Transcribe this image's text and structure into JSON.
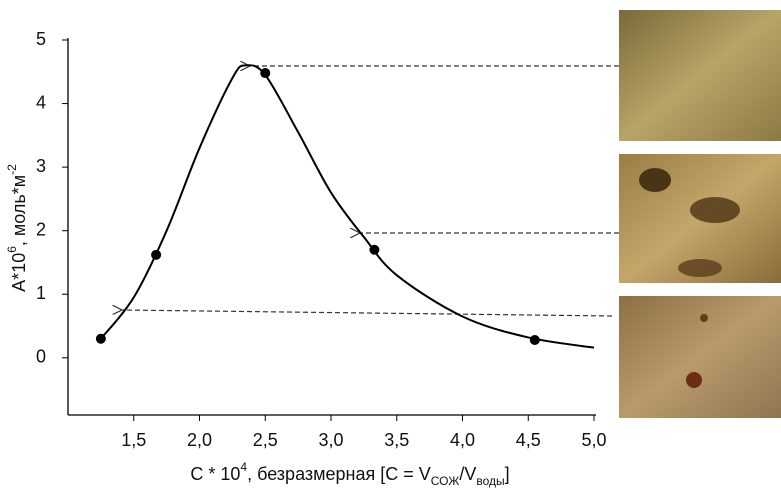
{
  "chart_data": {
    "type": "scatter",
    "x_label_parts": [
      "C * 10",
      "4",
      ", безразмерная  [C = V",
      "СОЖ",
      "/V",
      "воды",
      "]"
    ],
    "y_label_parts": [
      "A*10",
      "6",
      ", моль*м",
      "-2"
    ],
    "xlim": [
      1.0,
      5.0
    ],
    "ylim": [
      -0.9,
      5.0
    ],
    "xticks": [
      {
        "value": 1.5,
        "label": "1,5"
      },
      {
        "value": 2.0,
        "label": "2,0"
      },
      {
        "value": 2.5,
        "label": "2,5"
      },
      {
        "value": 3.0,
        "label": "3,0"
      },
      {
        "value": 3.5,
        "label": "3,5"
      },
      {
        "value": 4.0,
        "label": "4,0"
      },
      {
        "value": 4.5,
        "label": "4,5"
      },
      {
        "value": 5.0,
        "label": "5,0"
      }
    ],
    "yticks": [
      0,
      1,
      2,
      3,
      4,
      5
    ],
    "grid": false,
    "series": [
      {
        "type": "scatter",
        "color": "#000000",
        "x": [
          1.25,
          1.67,
          2.5,
          3.33,
          4.55
        ],
        "values": [
          0.3,
          1.62,
          4.48,
          1.7,
          0.28
        ]
      },
      {
        "type": "line",
        "color": "#000000",
        "x": [
          1.25,
          1.5,
          1.75,
          2.0,
          2.25,
          2.35,
          2.5,
          2.75,
          3.0,
          3.25,
          3.5,
          4.0,
          4.5,
          5.0
        ],
        "values": [
          0.3,
          0.95,
          2.0,
          3.3,
          4.4,
          4.6,
          4.45,
          3.55,
          2.6,
          1.9,
          1.3,
          0.65,
          0.32,
          0.16
        ]
      }
    ]
  }
}
